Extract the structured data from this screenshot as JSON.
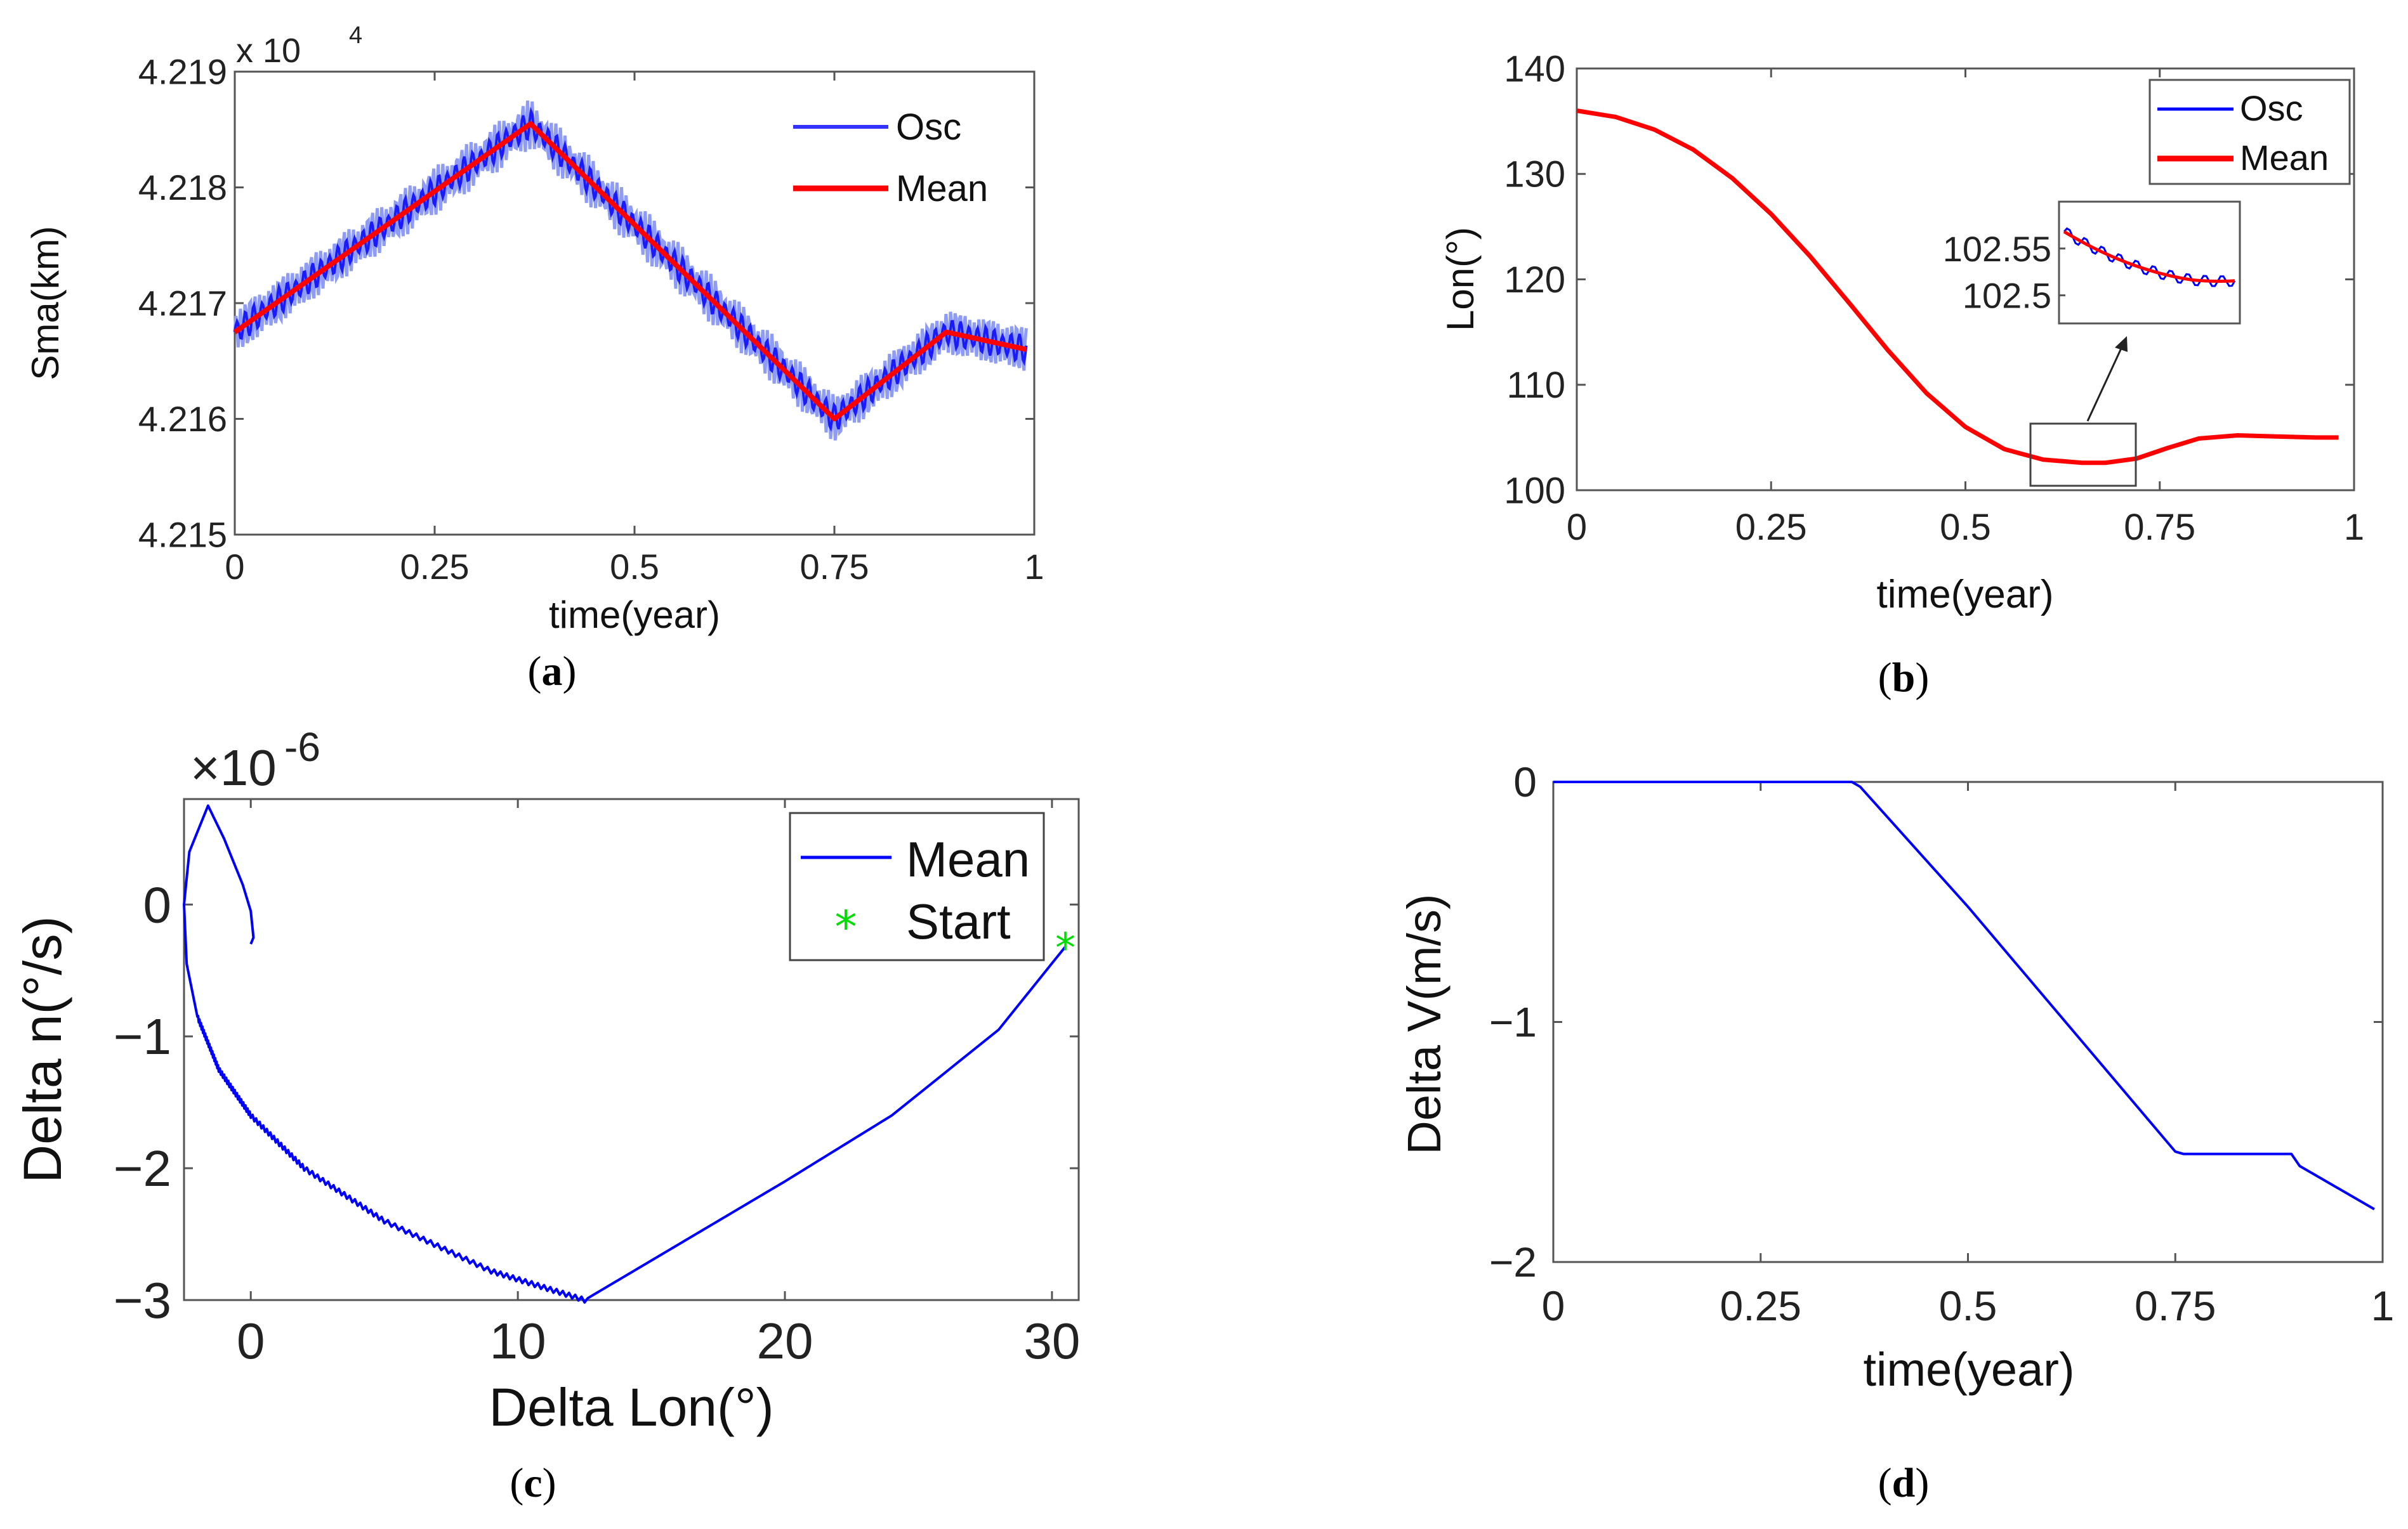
{
  "chart_data": [
    {
      "panel": "a",
      "caption": [
        "(",
        "a",
        ")"
      ],
      "type": "line",
      "xlabel": "time(year)",
      "ylabel": "Sma(km)",
      "scale_label": "x 10",
      "scale_exp": "4",
      "xlim": [
        0,
        1
      ],
      "ylim": [
        4.215,
        4.219
      ],
      "xticks": [
        "0",
        "0.25",
        "0.5",
        "0.75",
        "1"
      ],
      "xtick_values": [
        0,
        0.25,
        0.5,
        0.75,
        1
      ],
      "yticks": [
        "4.215",
        "4.216",
        "4.217",
        "4.218",
        "4.219"
      ],
      "ytick_values": [
        4.215,
        4.216,
        4.217,
        4.218,
        4.219
      ],
      "legend": [
        "Osc",
        "Mean"
      ],
      "series": [
        {
          "name": "Mean",
          "color": "#ff0000",
          "x": [
            0,
            0.37,
            0.75,
            0.89,
            0.99
          ],
          "y": [
            4.21675,
            4.21855,
            4.216,
            4.21675,
            4.2166
          ]
        },
        {
          "name": "Osc",
          "color": "#0000ff",
          "x": [
            0,
            0.37,
            0.75,
            0.89,
            0.99
          ],
          "y": [
            4.21675,
            4.21855,
            4.216,
            4.21675,
            4.2166
          ]
        }
      ]
    },
    {
      "panel": "b",
      "caption": [
        "(",
        "b",
        ")"
      ],
      "type": "line",
      "xlabel": "time(year)",
      "ylabel": "Lon(°)",
      "xlim": [
        0,
        1
      ],
      "ylim": [
        100,
        140
      ],
      "xticks": [
        "0",
        "0.25",
        "0.5",
        "0.75",
        "1"
      ],
      "xtick_values": [
        0,
        0.25,
        0.5,
        0.75,
        1
      ],
      "yticks": [
        "100",
        "110",
        "120",
        "130",
        "140"
      ],
      "ytick_values": [
        100,
        110,
        120,
        130,
        140
      ],
      "legend": [
        "Osc",
        "Mean"
      ],
      "inset": {
        "yticks": [
          "102.55",
          "102.5"
        ],
        "ytick_values": [
          102.55,
          102.5
        ],
        "ylim": [
          102.47,
          102.6
        ],
        "x_range": [
          0.57,
          0.7
        ]
      },
      "series": [
        {
          "name": "Mean",
          "color": "#ff0000",
          "x": [
            0,
            0.05,
            0.1,
            0.15,
            0.2,
            0.25,
            0.3,
            0.35,
            0.4,
            0.45,
            0.5,
            0.55,
            0.6,
            0.65,
            0.68,
            0.72,
            0.76,
            0.8,
            0.85,
            0.9,
            0.95,
            0.98
          ],
          "y": [
            136,
            135.4,
            134.2,
            132.3,
            129.6,
            126.2,
            122.2,
            117.8,
            113.3,
            109.2,
            106,
            103.9,
            102.9,
            102.6,
            102.6,
            103,
            104,
            104.9,
            105.2,
            105.1,
            105,
            105
          ]
        },
        {
          "name": "Osc",
          "color": "#0000ff",
          "x": [
            0,
            0.05,
            0.1,
            0.15,
            0.2,
            0.25,
            0.3,
            0.35,
            0.4,
            0.45,
            0.5,
            0.55,
            0.6,
            0.65,
            0.68,
            0.72,
            0.76,
            0.8,
            0.85,
            0.9,
            0.95,
            0.98
          ],
          "y": [
            136,
            135.4,
            134.2,
            132.3,
            129.6,
            126.2,
            122.2,
            117.8,
            113.3,
            109.2,
            106,
            103.9,
            102.9,
            102.6,
            102.6,
            103,
            104,
            104.9,
            105.2,
            105.1,
            105,
            105
          ]
        }
      ]
    },
    {
      "panel": "c",
      "caption": [
        "(",
        "c",
        ")"
      ],
      "type": "line",
      "xlabel": "Delta Lon(°)",
      "ylabel": "Delta n(°/s)",
      "scale_label": "×10",
      "scale_exp": "-6",
      "xlim": [
        -2.5,
        31
      ],
      "ylim": [
        -3,
        0.8
      ],
      "xticks": [
        "0",
        "10",
        "20",
        "30"
      ],
      "xtick_values": [
        0,
        10,
        20,
        30
      ],
      "yticks": [
        "−3",
        "−2",
        "−1",
        "0"
      ],
      "ytick_values": [
        -3,
        -2,
        -1,
        0
      ],
      "legend": [
        "Mean",
        "Start"
      ],
      "series": [
        {
          "name": "Mean",
          "color": "#0000ff",
          "x": [
            30.5,
            28,
            24,
            20,
            16,
            12.5,
            9,
            5,
            2,
            0,
            -1.2,
            -2,
            -2.4,
            -2.5,
            -2.3,
            -1.6,
            -1,
            -0.3,
            0,
            0.1,
            0
          ],
          "y": [
            -0.32,
            -0.95,
            -1.6,
            -2.1,
            -2.58,
            -3,
            -2.78,
            -2.4,
            -2.0,
            -1.6,
            -1.25,
            -0.85,
            -0.45,
            0,
            0.4,
            0.75,
            0.5,
            0.15,
            -0.05,
            -0.25,
            -0.3
          ]
        },
        {
          "name": "Start",
          "color": "#00dd00",
          "marker": "*",
          "x": [
            30.5
          ],
          "y": [
            -0.32
          ]
        }
      ]
    },
    {
      "panel": "d",
      "caption": [
        "(",
        "d",
        ")"
      ],
      "type": "line",
      "xlabel": "time(year)",
      "ylabel": "Delta V(m/s)",
      "xlim": [
        0,
        1
      ],
      "ylim": [
        -2,
        0
      ],
      "xticks": [
        "0",
        "0.25",
        "0.5",
        "0.75",
        "1"
      ],
      "xtick_values": [
        0,
        0.25,
        0.5,
        0.75,
        1
      ],
      "yticks": [
        "−2",
        "−1",
        "0"
      ],
      "ytick_values": [
        -2,
        -1,
        0
      ],
      "series": [
        {
          "name": "Delta V",
          "color": "#0000ff",
          "x": [
            0,
            0.36,
            0.37,
            0.5,
            0.75,
            0.76,
            0.89,
            0.9,
            0.96,
            0.99
          ],
          "y": [
            0,
            0,
            -0.02,
            -0.52,
            -1.54,
            -1.55,
            -1.55,
            -1.6,
            -1.72,
            -1.78
          ]
        }
      ]
    }
  ]
}
